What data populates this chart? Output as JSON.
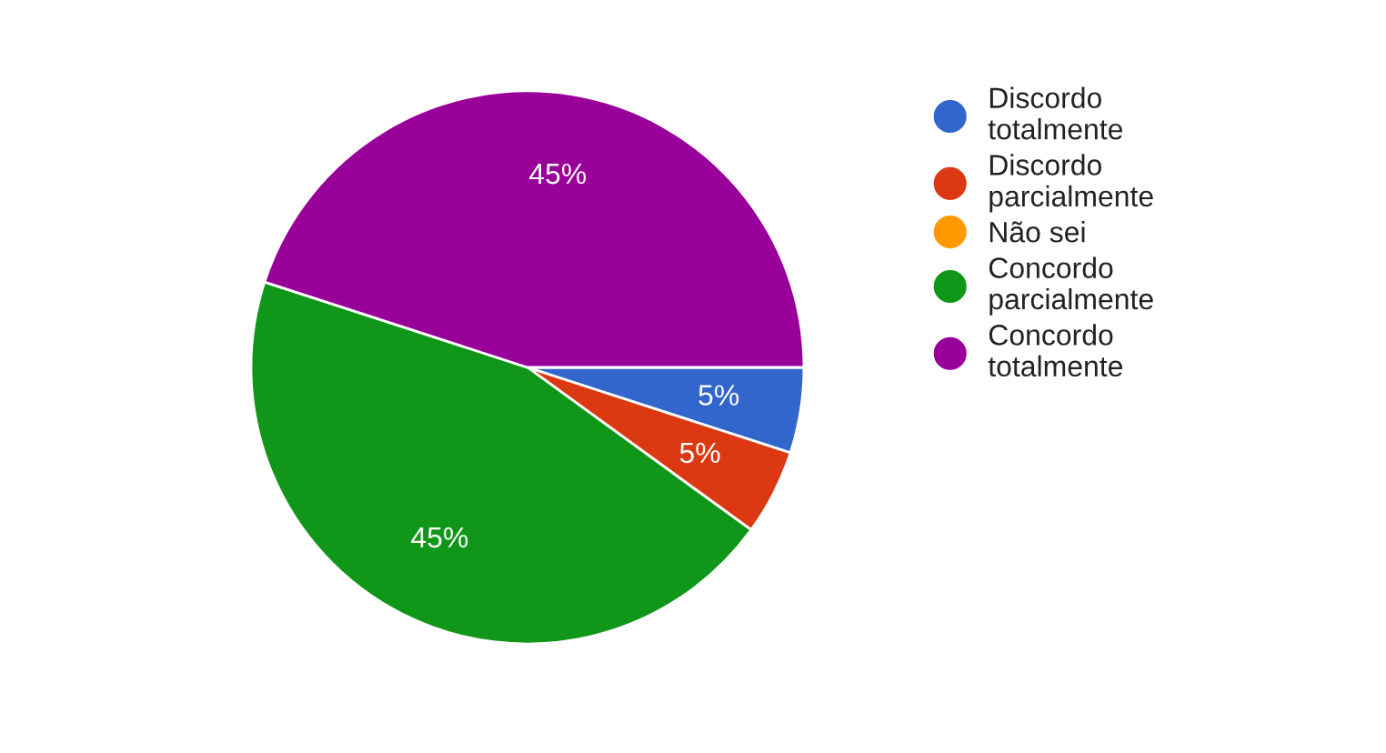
{
  "chart_data": {
    "type": "pie",
    "categories": [
      "Discordo totalmente",
      "Discordo parcialmente",
      "Não sei",
      "Concordo parcialmente",
      "Concordo totalmente"
    ],
    "values": [
      5,
      5,
      0,
      45,
      45
    ],
    "colors": [
      "#3366cc",
      "#dc3912",
      "#ff9900",
      "#109618",
      "#990099"
    ],
    "value_labels": [
      "5%",
      "5%",
      null,
      "45%",
      "45%"
    ],
    "legend": "right"
  }
}
